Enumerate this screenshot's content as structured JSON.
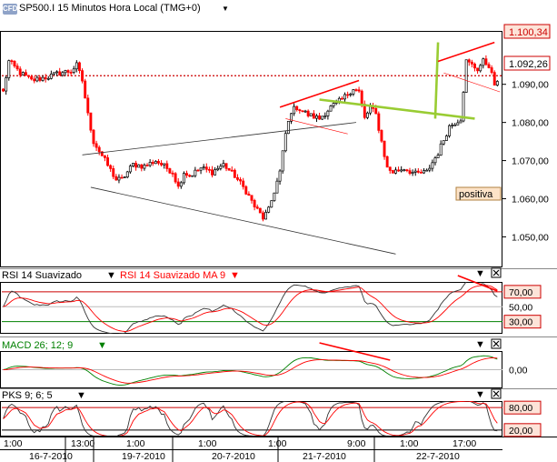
{
  "header": {
    "logo_text": "CFD",
    "title": "SP500.I 15 Minutos Hora Local (TMG+0)",
    "dropdown_icon": "triangle-down-icon"
  },
  "price_panel": {
    "last_price_label": "1.092,26",
    "high_label": "1.100,34",
    "badge_text": "positiva",
    "colors": {
      "up": "#000000",
      "down": "#ff0000",
      "trend_red": "#ff0000",
      "trend_green": "#99cc33",
      "dotted": "#cc0000"
    }
  },
  "rsi_panel": {
    "title": "RSI 14 Suavizado",
    "ma_title": "RSI 14 Suavizado MA 9",
    "levels": [
      "70,00",
      "50,00",
      "30,00"
    ]
  },
  "macd_panel": {
    "title": "MACD 26; 12; 9",
    "levels": [
      "0,00"
    ]
  },
  "pks_panel": {
    "title": "PKS 9; 6; 5",
    "levels": [
      "80,00",
      "20,00"
    ]
  },
  "time_axis": {
    "hours": [
      "1:00",
      "13:00",
      "1:00",
      "1:00",
      "1:00",
      "9:00",
      "1:00",
      "17:00"
    ],
    "dates": [
      "16-7-2010",
      "19-7-2010",
      "20-7-2010",
      "21-7-2010",
      "22-7-2010"
    ]
  },
  "chart_data": [
    {
      "type": "candlestick",
      "title": "SP500.I 15 Minutos Hora Local (TMG+0)",
      "ylim": [
        1042,
        1104
      ],
      "y_ticks": [
        "1.100,34",
        "1.092,26",
        "1.090,00",
        "1.080,00",
        "1.070,00",
        "1.060,00",
        "1.050,00"
      ],
      "x": [
        "16-7-2010",
        "19-7-2010",
        "20-7-2010",
        "21-7-2010",
        "22-7-2010"
      ],
      "key_levels": {
        "last": 1092.26,
        "high": 1100.34
      },
      "price_path": [
        [
          0,
          1088
        ],
        [
          2,
          1096
        ],
        [
          6,
          1093
        ],
        [
          10,
          1091
        ],
        [
          16,
          1092
        ],
        [
          20,
          1093
        ],
        [
          24,
          1093.5
        ],
        [
          26,
          1095
        ],
        [
          28,
          1091
        ],
        [
          30,
          1082
        ],
        [
          32,
          1075
        ],
        [
          36,
          1070
        ],
        [
          40,
          1065
        ],
        [
          42,
          1065
        ],
        [
          46,
          1069
        ],
        [
          50,
          1068.5
        ],
        [
          54,
          1070
        ],
        [
          58,
          1068
        ],
        [
          60,
          1067
        ],
        [
          62,
          1063
        ],
        [
          64,
          1067
        ],
        [
          66,
          1066
        ],
        [
          70,
          1068
        ],
        [
          74,
          1067
        ],
        [
          78,
          1069
        ],
        [
          82,
          1066
        ],
        [
          86,
          1062
        ],
        [
          89,
          1058
        ],
        [
          92,
          1055
        ],
        [
          94,
          1057
        ],
        [
          98,
          1067
        ],
        [
          100,
          1077
        ],
        [
          102,
          1083
        ],
        [
          104,
          1084
        ],
        [
          108,
          1082
        ],
        [
          112,
          1081
        ],
        [
          116,
          1084
        ],
        [
          120,
          1086
        ],
        [
          124,
          1089
        ],
        [
          126,
          1088
        ],
        [
          128,
          1081
        ],
        [
          130,
          1084
        ],
        [
          132,
          1082
        ],
        [
          134,
          1075
        ],
        [
          136,
          1068
        ],
        [
          138,
          1067
        ],
        [
          142,
          1068
        ],
        [
          146,
          1066.5
        ],
        [
          150,
          1067
        ],
        [
          154,
          1072
        ],
        [
          158,
          1079
        ],
        [
          160,
          1080
        ],
        [
          162,
          1081
        ],
        [
          164,
          1096
        ],
        [
          166,
          1095
        ],
        [
          168,
          1094
        ],
        [
          170,
          1096
        ],
        [
          172,
          1095
        ],
        [
          174,
          1090
        ]
      ]
    },
    {
      "type": "line",
      "title": "RSI 14 Suavizado",
      "series": [
        {
          "name": "RSI 14 Suavizado"
        },
        {
          "name": "RSI 14 Suavizado MA 9"
        }
      ],
      "ylim": [
        15,
        82
      ],
      "levels": [
        70,
        50,
        30
      ]
    },
    {
      "type": "line",
      "title": "MACD 26; 12; 9",
      "ylim": [
        -3,
        3
      ],
      "levels": [
        0
      ]
    },
    {
      "type": "line",
      "title": "PKS 9; 6; 5",
      "ylim": [
        5,
        95
      ],
      "levels": [
        80,
        20
      ]
    }
  ]
}
